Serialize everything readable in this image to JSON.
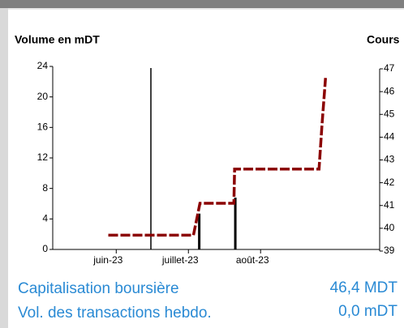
{
  "chart_data": {
    "type": "bar-line",
    "left_title": "Volume en mDT",
    "right_title": "Cours",
    "xlim": [
      5.12,
      9.65
    ],
    "xticks": [
      {
        "value": 6,
        "label": "juin-23"
      },
      {
        "value": 7,
        "label": "juillet-23"
      },
      {
        "value": 8,
        "label": "août-23"
      }
    ],
    "ylim": [
      0,
      24
    ],
    "yticks": [
      0,
      4,
      8,
      12,
      16,
      20,
      24
    ],
    "y2lim": [
      39,
      47
    ],
    "y2ticks": [
      39,
      40,
      41,
      42,
      43,
      44,
      45,
      46,
      47
    ],
    "series": [
      {
        "name": "Volume",
        "type": "bar",
        "color": "#000000",
        "x": [
          7.15,
          7.65
        ],
        "values": [
          4.7,
          6.8
        ]
      },
      {
        "name": "Cours",
        "type": "line",
        "axis": "y2",
        "color": "#8b0000",
        "x": [
          5.89,
          7.07,
          7.16,
          7.63,
          7.64,
          8.81,
          8.85,
          8.9
        ],
        "values": [
          39.7,
          39.7,
          41.1,
          41.1,
          42.6,
          42.6,
          44.5,
          46.6
        ]
      }
    ]
  },
  "info": [
    {
      "label": "Capitalisation boursière",
      "value": "46,4 MDT"
    },
    {
      "label": "Vol. des transactions hebdo.",
      "value": "0,0 mDT"
    }
  ]
}
